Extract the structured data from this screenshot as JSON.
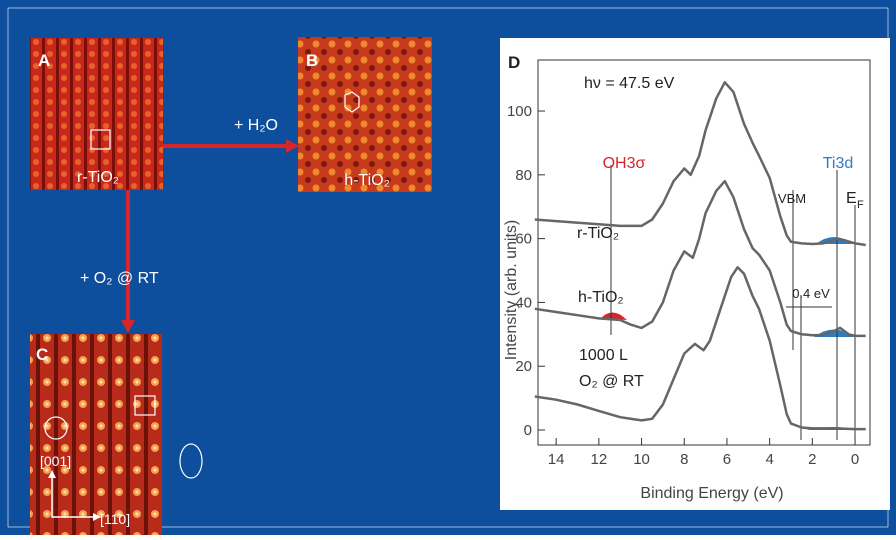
{
  "panels": [
    {
      "letter": "A",
      "caption": "r-TiO₂"
    },
    {
      "letter": "B",
      "caption": "h-TiO₂"
    },
    {
      "letter": "C",
      "directions": [
        "[001]",
        "[11̄0]"
      ]
    }
  ],
  "arrows": [
    "+ H₂O",
    "+ O₂  @ RT"
  ],
  "chart_data": {
    "type": "line",
    "letter": "D",
    "xlabel": "Binding Energy  (eV)",
    "ylabel": "Intensity  (arb. units)",
    "xlim": [
      14.85,
      -0.7
    ],
    "ylim": [
      -4.7,
      116
    ],
    "xticks": [
      14,
      12,
      10,
      8,
      6,
      4,
      2,
      0
    ],
    "yticks": [
      0,
      20,
      40,
      60,
      80,
      100
    ],
    "color": "#666666",
    "annotations": [
      "hν = 47.5 eV",
      "OH3σ",
      "Ti3d",
      "VBM",
      "E",
      "F",
      "r-TiO₂",
      "h-TiO₂",
      "0.4 eV",
      "1000 L",
      "O₂ @ RT"
    ],
    "series": [
      {
        "x": [
          15,
          14,
          12,
          11,
          10,
          9.5,
          9,
          8.5,
          8,
          7.7,
          7.3,
          7,
          6.5,
          6.1,
          5.7,
          5.2,
          4.8,
          4.5,
          4,
          3.5,
          3.2,
          3,
          2.5,
          2,
          1.5,
          1,
          0.8,
          0.5,
          0,
          -0.5
        ],
        "values": [
          66,
          65.5,
          64.5,
          64,
          64,
          66,
          71,
          78,
          82,
          80,
          86,
          94,
          104,
          109,
          106,
          96,
          90,
          86,
          79,
          67,
          61,
          59,
          58.5,
          58.3,
          58.5,
          59.5,
          60,
          59.5,
          58.5,
          58
        ]
      },
      {
        "x": [
          15,
          14,
          13,
          12,
          11,
          10.5,
          10,
          9.5,
          9,
          8.5,
          8,
          7.6,
          7.3,
          7,
          6.5,
          6.1,
          5.7,
          5.2,
          4.8,
          4.5,
          4,
          3.5,
          3.2,
          3,
          2.5,
          2,
          1.5,
          1,
          0.7,
          0.3,
          0,
          -0.5
        ],
        "values": [
          38,
          37,
          36,
          35,
          34.5,
          33,
          32,
          34,
          40,
          50,
          56,
          54,
          60,
          68,
          75,
          78,
          73,
          63,
          57,
          55,
          50,
          40,
          33,
          31,
          30,
          29.7,
          29.8,
          31,
          32,
          30,
          29.5,
          29.5
        ]
      },
      {
        "x": [
          15,
          14,
          13,
          12,
          11,
          10,
          9.5,
          9,
          8.5,
          8,
          7.5,
          7.1,
          6.8,
          6.3,
          5.8,
          5.5,
          5.2,
          4.8,
          4.5,
          4,
          3.5,
          3.2,
          3,
          2.5,
          2,
          1,
          0,
          -0.5
        ],
        "values": [
          10.5,
          9.5,
          8,
          6,
          4,
          3,
          3.5,
          8,
          16,
          24,
          27,
          25,
          28,
          38,
          48,
          51,
          49,
          42,
          38,
          28,
          14,
          5,
          2,
          0.8,
          0.5,
          0.5,
          0.3,
          0.3
        ]
      }
    ]
  }
}
